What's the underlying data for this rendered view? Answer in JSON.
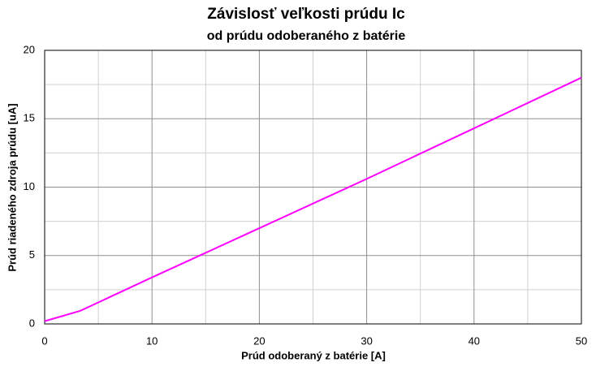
{
  "chart_data": {
    "type": "line",
    "title": "Závislosť veľkosti prúdu Ic",
    "subtitle": "od prúdu odoberaného z batérie",
    "x_label": "Prúd odoberaný z batérie [A]",
    "y_label": "Prúd riadeného zdroja prúdu [uA]",
    "x": [
      0,
      3.3,
      10,
      20,
      30,
      40,
      50
    ],
    "series": [
      {
        "name": "Ic",
        "color": "#ff00ff",
        "values": [
          0.2,
          0.95,
          3.4,
          7.0,
          10.6,
          14.3,
          18.0
        ]
      }
    ],
    "xlim": [
      0,
      50
    ],
    "xticks": [
      0,
      10,
      20,
      30,
      40,
      50
    ],
    "ylim": [
      0,
      20
    ],
    "yticks": [
      0,
      5,
      10,
      15,
      20
    ],
    "grid": true,
    "minor_grid": true
  }
}
